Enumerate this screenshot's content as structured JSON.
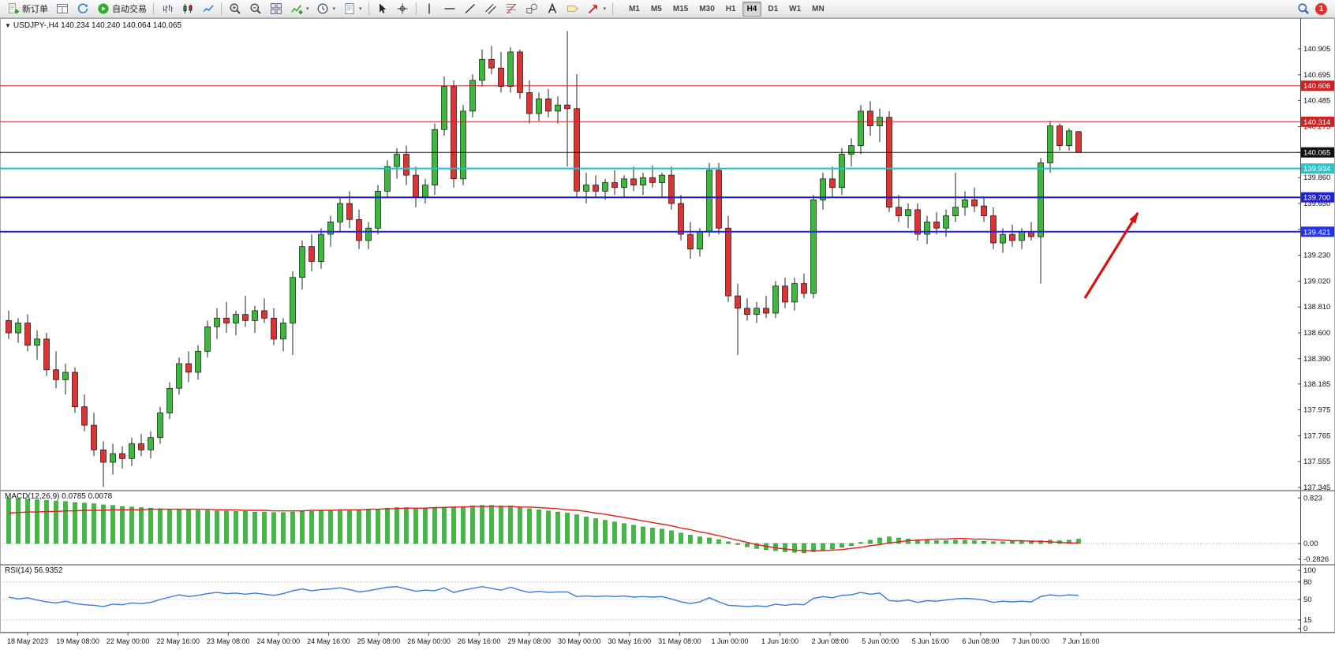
{
  "toolbar": {
    "new_order_label": "新订单",
    "autotrade_label": "自动交易",
    "items": [
      {
        "name": "new-order",
        "icon": "doc-plus",
        "label": "新订单"
      },
      {
        "name": "charts-grid",
        "icon": "grid-win"
      },
      {
        "name": "refresh",
        "icon": "refresh"
      },
      {
        "name": "autotrade",
        "icon": "play-green",
        "label": "自动交易"
      },
      {
        "name": "sep"
      },
      {
        "name": "bar-chart",
        "icon": "bars"
      },
      {
        "name": "candle-chart",
        "icon": "candles"
      },
      {
        "name": "line-chart",
        "icon": "line"
      },
      {
        "name": "sep"
      },
      {
        "name": "zoom-in",
        "icon": "zoom-in"
      },
      {
        "name": "zoom-out",
        "icon": "zoom-out"
      },
      {
        "name": "tile-windows",
        "icon": "tile"
      },
      {
        "name": "indicators",
        "icon": "indicator",
        "dropdown": true
      },
      {
        "name": "periods",
        "icon": "clock",
        "dropdown": true
      },
      {
        "name": "templates",
        "icon": "template",
        "dropdown": true
      },
      {
        "name": "sep"
      },
      {
        "name": "cursor",
        "icon": "cursor"
      },
      {
        "name": "crosshair",
        "icon": "crosshair"
      },
      {
        "name": "sep"
      },
      {
        "name": "vertical-line",
        "icon": "vline"
      },
      {
        "name": "horizontal-line",
        "icon": "hline"
      },
      {
        "name": "trendline",
        "icon": "trend"
      },
      {
        "name": "equidistant-channel",
        "icon": "channel"
      },
      {
        "name": "fibonacci",
        "icon": "fib"
      },
      {
        "name": "shapes",
        "icon": "shapes"
      },
      {
        "name": "text",
        "icon": "text-a"
      },
      {
        "name": "text-label",
        "icon": "label"
      },
      {
        "name": "arrows",
        "icon": "arrow",
        "dropdown": true
      },
      {
        "name": "sep"
      }
    ],
    "timeframes": [
      "M1",
      "M5",
      "M15",
      "M30",
      "H1",
      "H4",
      "D1",
      "W1",
      "MN"
    ],
    "active_timeframe": "H4",
    "notification_count": "1"
  },
  "chart_window": {
    "title": "USDJPY-,H4  140.234 140.240 140.064 140.065",
    "symbol": "USDJPY-",
    "period": "H4",
    "ohlc": {
      "open": "140.234",
      "high": "140.240",
      "low": "140.064",
      "close": "140.065"
    }
  },
  "chart_data": {
    "type": "candlestick",
    "title": "USDJPY- H4",
    "current_price": 140.065,
    "price_axis": [
      140.905,
      140.695,
      140.485,
      140.275,
      140.065,
      139.86,
      139.65,
      139.44,
      139.23,
      139.02,
      138.81,
      138.6,
      138.39,
      138.185,
      137.975,
      137.765,
      137.555,
      137.345
    ],
    "time_labels": [
      "18 May 2023",
      "19 May 08:00",
      "22 May 00:00",
      "22 May 16:00",
      "23 May 08:00",
      "24 May 00:00",
      "24 May 16:00",
      "25 May 08:00",
      "26 May 00:00",
      "26 May 16:00",
      "29 May 08:00",
      "30 May 00:00",
      "30 May 16:00",
      "31 May 08:00",
      "1 Jun 00:00",
      "1 Jun 16:00",
      "2 Jun 08:00",
      "5 Jun 00:00",
      "5 Jun 16:00",
      "6 Jun 08:00",
      "7 Jun 00:00",
      "7 Jun 16:00"
    ],
    "hlines": [
      {
        "price": 140.606,
        "color": "#c62222",
        "box": "#cc2222",
        "text": "#ffffff",
        "width": 1
      },
      {
        "price": 140.314,
        "color": "#c62222",
        "box": "#cc2222",
        "text": "#ffffff",
        "width": 1
      },
      {
        "price": 140.065,
        "color": "#111111",
        "box": "#111111",
        "text": "#ffffff",
        "width": 1
      },
      {
        "price": 139.934,
        "color": "#17c6c6",
        "box": "#2cc5c5",
        "text": "#ffffff",
        "width": 2
      },
      {
        "price": 139.7,
        "color": "#1515cc",
        "box": "#2222cc",
        "text": "#ffffff",
        "width": 2
      },
      {
        "price": 139.421,
        "color": "#2222ee",
        "box": "#2233ee",
        "text": "#ffffff",
        "width": 2
      }
    ],
    "annotations": [
      {
        "type": "arrow",
        "direction": "up-right",
        "color": "#dd1111"
      }
    ],
    "colors": {
      "up": "#3cb83c",
      "down": "#dd3333",
      "outline": "#111111",
      "background": "#ffffff"
    },
    "candles": [
      [
        138.7,
        138.78,
        138.55,
        138.6
      ],
      [
        138.6,
        138.72,
        138.52,
        138.68
      ],
      [
        138.68,
        138.75,
        138.45,
        138.5
      ],
      [
        138.5,
        138.62,
        138.38,
        138.55
      ],
      [
        138.55,
        138.6,
        138.25,
        138.3
      ],
      [
        138.3,
        138.45,
        138.15,
        138.22
      ],
      [
        138.22,
        138.35,
        138.1,
        138.28
      ],
      [
        138.28,
        138.32,
        137.95,
        138.0
      ],
      [
        138.0,
        138.1,
        137.8,
        137.85
      ],
      [
        137.85,
        137.95,
        137.6,
        137.65
      ],
      [
        137.65,
        137.72,
        137.35,
        137.55
      ],
      [
        137.55,
        137.7,
        137.45,
        137.62
      ],
      [
        137.62,
        137.68,
        137.5,
        137.58
      ],
      [
        137.58,
        137.75,
        137.52,
        137.7
      ],
      [
        137.7,
        137.78,
        137.6,
        137.65
      ],
      [
        137.65,
        137.8,
        137.58,
        137.75
      ],
      [
        137.75,
        138.0,
        137.7,
        137.95
      ],
      [
        137.95,
        138.2,
        137.9,
        138.15
      ],
      [
        138.15,
        138.4,
        138.1,
        138.35
      ],
      [
        138.35,
        138.45,
        138.2,
        138.28
      ],
      [
        138.28,
        138.5,
        138.22,
        138.45
      ],
      [
        138.45,
        138.7,
        138.4,
        138.65
      ],
      [
        138.65,
        138.8,
        138.55,
        138.72
      ],
      [
        138.72,
        138.85,
        138.6,
        138.68
      ],
      [
        138.68,
        138.78,
        138.58,
        138.75
      ],
      [
        138.75,
        138.9,
        138.65,
        138.7
      ],
      [
        138.7,
        138.82,
        138.6,
        138.78
      ],
      [
        138.78,
        138.88,
        138.68,
        138.72
      ],
      [
        138.72,
        138.8,
        138.5,
        138.55
      ],
      [
        138.55,
        138.72,
        138.45,
        138.68
      ],
      [
        138.68,
        139.1,
        138.42,
        139.05
      ],
      [
        139.05,
        139.35,
        138.95,
        139.3
      ],
      [
        139.3,
        139.4,
        139.1,
        139.18
      ],
      [
        139.18,
        139.45,
        139.12,
        139.4
      ],
      [
        139.4,
        139.55,
        139.3,
        139.5
      ],
      [
        139.5,
        139.7,
        139.42,
        139.65
      ],
      [
        139.65,
        139.75,
        139.45,
        139.52
      ],
      [
        139.52,
        139.6,
        139.28,
        139.35
      ],
      [
        139.35,
        139.5,
        139.28,
        139.45
      ],
      [
        139.45,
        139.8,
        139.4,
        139.75
      ],
      [
        139.75,
        140.0,
        139.7,
        139.95
      ],
      [
        139.95,
        140.1,
        139.85,
        140.05
      ],
      [
        140.05,
        140.12,
        139.8,
        139.88
      ],
      [
        139.88,
        139.95,
        139.62,
        139.7
      ],
      [
        139.7,
        139.85,
        139.65,
        139.8
      ],
      [
        139.8,
        140.3,
        139.72,
        140.25
      ],
      [
        140.25,
        140.68,
        140.2,
        140.6
      ],
      [
        140.6,
        140.65,
        139.78,
        139.85
      ],
      [
        139.85,
        140.45,
        139.8,
        140.4
      ],
      [
        140.4,
        140.7,
        140.35,
        140.65
      ],
      [
        140.65,
        140.9,
        140.6,
        140.82
      ],
      [
        140.82,
        140.93,
        140.7,
        140.75
      ],
      [
        140.75,
        140.88,
        140.55,
        140.6
      ],
      [
        140.6,
        140.92,
        140.55,
        140.88
      ],
      [
        140.88,
        140.9,
        140.5,
        140.55
      ],
      [
        140.55,
        140.65,
        140.3,
        140.38
      ],
      [
        140.38,
        140.55,
        140.32,
        140.5
      ],
      [
        140.5,
        140.58,
        140.35,
        140.4
      ],
      [
        140.4,
        140.52,
        140.3,
        140.45
      ],
      [
        140.45,
        141.05,
        139.95,
        140.42
      ],
      [
        140.42,
        140.7,
        139.7,
        139.75
      ],
      [
        139.75,
        139.9,
        139.65,
        139.8
      ],
      [
        139.8,
        139.88,
        139.7,
        139.75
      ],
      [
        139.75,
        139.85,
        139.68,
        139.82
      ],
      [
        139.82,
        139.92,
        139.72,
        139.78
      ],
      [
        139.78,
        139.88,
        139.7,
        139.85
      ],
      [
        139.85,
        139.95,
        139.75,
        139.8
      ],
      [
        139.8,
        139.9,
        139.72,
        139.86
      ],
      [
        139.86,
        139.96,
        139.78,
        139.82
      ],
      [
        139.82,
        139.9,
        139.7,
        139.88
      ],
      [
        139.88,
        139.95,
        139.6,
        139.65
      ],
      [
        139.65,
        139.72,
        139.35,
        139.4
      ],
      [
        139.4,
        139.5,
        139.2,
        139.28
      ],
      [
        139.28,
        139.45,
        139.22,
        139.42
      ],
      [
        139.42,
        139.98,
        139.38,
        139.92
      ],
      [
        139.92,
        139.98,
        139.4,
        139.45
      ],
      [
        139.45,
        139.55,
        138.85,
        138.9
      ],
      [
        138.9,
        139.0,
        138.42,
        138.8
      ],
      [
        138.8,
        138.88,
        138.7,
        138.75
      ],
      [
        138.75,
        138.85,
        138.68,
        138.8
      ],
      [
        138.8,
        138.9,
        138.72,
        138.76
      ],
      [
        138.76,
        139.02,
        138.72,
        138.98
      ],
      [
        138.98,
        139.05,
        138.8,
        138.85
      ],
      [
        138.85,
        139.05,
        138.78,
        139.0
      ],
      [
        139.0,
        139.08,
        138.88,
        138.92
      ],
      [
        138.92,
        139.72,
        138.88,
        139.68
      ],
      [
        139.68,
        139.9,
        139.6,
        139.85
      ],
      [
        139.85,
        139.95,
        139.7,
        139.78
      ],
      [
        139.78,
        140.1,
        139.72,
        140.05
      ],
      [
        140.05,
        140.18,
        139.95,
        140.12
      ],
      [
        140.12,
        140.45,
        140.05,
        140.4
      ],
      [
        140.4,
        140.48,
        140.2,
        140.28
      ],
      [
        140.28,
        140.42,
        140.15,
        140.35
      ],
      [
        140.35,
        140.4,
        139.58,
        139.62
      ],
      [
        139.62,
        139.72,
        139.5,
        139.55
      ],
      [
        139.55,
        139.65,
        139.45,
        139.6
      ],
      [
        139.6,
        139.65,
        139.35,
        139.4
      ],
      [
        139.4,
        139.55,
        139.32,
        139.5
      ],
      [
        139.5,
        139.58,
        139.4,
        139.45
      ],
      [
        139.45,
        139.6,
        139.38,
        139.55
      ],
      [
        139.55,
        139.9,
        139.5,
        139.62
      ],
      [
        139.62,
        139.75,
        139.55,
        139.68
      ],
      [
        139.68,
        139.78,
        139.58,
        139.63
      ],
      [
        139.63,
        139.7,
        139.5,
        139.55
      ],
      [
        139.55,
        139.62,
        139.28,
        139.33
      ],
      [
        139.33,
        139.45,
        139.25,
        139.4
      ],
      [
        139.4,
        139.48,
        139.3,
        139.35
      ],
      [
        139.35,
        139.45,
        139.28,
        139.42
      ],
      [
        139.42,
        139.5,
        139.35,
        139.38
      ],
      [
        139.38,
        140.02,
        139.0,
        139.98
      ],
      [
        139.98,
        140.32,
        139.9,
        140.28
      ],
      [
        140.28,
        140.3,
        140.08,
        140.12
      ],
      [
        140.12,
        140.26,
        140.08,
        140.24
      ],
      [
        140.234,
        140.24,
        140.064,
        140.065
      ]
    ],
    "indicators": {
      "macd": {
        "label": "MACD(12,26,9) 0.0785 0.0078",
        "axis": [
          "0.823",
          "0.00",
          "-0.2826"
        ],
        "hist_color": "#3dbd3d",
        "signal_color": "#e02020",
        "hist": [
          0.82,
          0.81,
          0.8,
          0.79,
          0.78,
          0.77,
          0.76,
          0.74,
          0.73,
          0.72,
          0.7,
          0.69,
          0.67,
          0.66,
          0.65,
          0.64,
          0.63,
          0.62,
          0.62,
          0.61,
          0.6,
          0.6,
          0.59,
          0.59,
          0.58,
          0.58,
          0.57,
          0.57,
          0.56,
          0.56,
          0.57,
          0.58,
          0.58,
          0.59,
          0.6,
          0.61,
          0.61,
          0.6,
          0.61,
          0.62,
          0.64,
          0.65,
          0.65,
          0.64,
          0.63,
          0.64,
          0.66,
          0.65,
          0.67,
          0.68,
          0.69,
          0.69,
          0.68,
          0.68,
          0.66,
          0.63,
          0.61,
          0.59,
          0.57,
          0.55,
          0.52,
          0.48,
          0.45,
          0.42,
          0.39,
          0.36,
          0.33,
          0.3,
          0.28,
          0.26,
          0.23,
          0.19,
          0.15,
          0.12,
          0.1,
          0.07,
          0.03,
          -0.02,
          -0.06,
          -0.09,
          -0.11,
          -0.13,
          -0.15,
          -0.16,
          -0.17,
          -0.15,
          -0.12,
          -0.1,
          -0.07,
          -0.04,
          0.02,
          0.06,
          0.1,
          0.12,
          0.1,
          0.08,
          0.07,
          0.06,
          0.05,
          0.05,
          0.06,
          0.06,
          0.05,
          0.04,
          0.03,
          0.03,
          0.04,
          0.04,
          0.05,
          0.05,
          0.06,
          0.05,
          0.06,
          0.0785
        ],
        "signal": [
          0.55,
          0.56,
          0.57,
          0.57,
          0.58,
          0.58,
          0.59,
          0.59,
          0.6,
          0.6,
          0.6,
          0.61,
          0.61,
          0.61,
          0.61,
          0.62,
          0.62,
          0.62,
          0.62,
          0.62,
          0.62,
          0.62,
          0.61,
          0.61,
          0.61,
          0.6,
          0.6,
          0.6,
          0.59,
          0.59,
          0.59,
          0.59,
          0.6,
          0.6,
          0.6,
          0.61,
          0.61,
          0.61,
          0.62,
          0.62,
          0.63,
          0.63,
          0.64,
          0.64,
          0.64,
          0.65,
          0.65,
          0.66,
          0.66,
          0.67,
          0.67,
          0.67,
          0.67,
          0.67,
          0.66,
          0.66,
          0.65,
          0.64,
          0.63,
          0.61,
          0.6,
          0.58,
          0.55,
          0.53,
          0.5,
          0.47,
          0.44,
          0.41,
          0.38,
          0.35,
          0.32,
          0.28,
          0.25,
          0.21,
          0.18,
          0.14,
          0.1,
          0.06,
          0.02,
          -0.02,
          -0.05,
          -0.08,
          -0.1,
          -0.12,
          -0.13,
          -0.13,
          -0.13,
          -0.12,
          -0.11,
          -0.09,
          -0.07,
          -0.04,
          -0.02,
          0.01,
          0.03,
          0.05,
          0.06,
          0.07,
          0.08,
          0.08,
          0.09,
          0.09,
          0.08,
          0.08,
          0.07,
          0.06,
          0.05,
          0.05,
          0.04,
          0.04,
          0.03,
          0.02,
          0.01,
          0.01
        ]
      },
      "rsi": {
        "label": "RSI(14) 56.9352",
        "axis": [
          "100",
          "80",
          "50",
          "15",
          "0"
        ],
        "levels": [
          80,
          50,
          15
        ],
        "line_color": "#3b7ad7",
        "values": [
          54,
          51,
          53,
          49,
          46,
          44,
          47,
          43,
          41,
          40,
          38,
          42,
          41,
          44,
          43,
          45,
          50,
          54,
          58,
          55,
          57,
          60,
          62,
          60,
          61,
          59,
          61,
          59,
          57,
          60,
          65,
          68,
          65,
          67,
          68,
          70,
          67,
          63,
          65,
          68,
          71,
          72,
          68,
          64,
          66,
          65,
          70,
          62,
          66,
          69,
          72,
          69,
          66,
          71,
          66,
          62,
          64,
          62,
          63,
          63,
          55,
          56,
          55,
          56,
          55,
          56,
          54,
          55,
          54,
          55,
          51,
          46,
          43,
          46,
          53,
          46,
          40,
          39,
          38,
          39,
          38,
          42,
          40,
          42,
          41,
          52,
          55,
          53,
          57,
          58,
          62,
          59,
          61,
          48,
          47,
          49,
          45,
          48,
          47,
          49,
          51,
          52,
          51,
          49,
          45,
          47,
          46,
          47,
          46,
          55,
          58,
          56,
          58,
          56.94
        ]
      }
    }
  }
}
